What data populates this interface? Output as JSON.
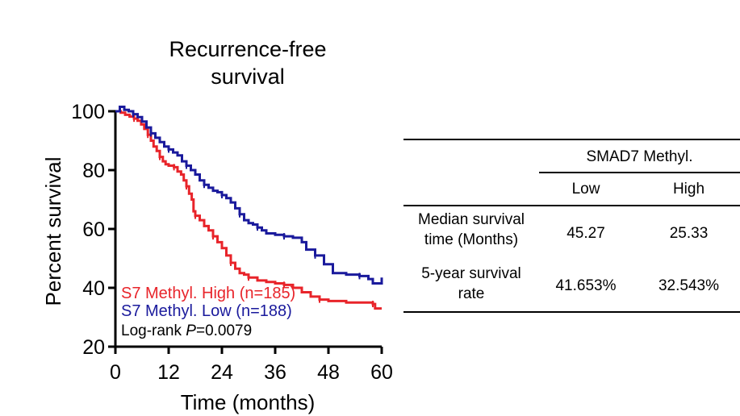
{
  "chart_data": {
    "type": "line",
    "subtype": "kaplan-meier",
    "title": "Recurrence-free\nsurvival",
    "title_lines": [
      "Recurrence-free",
      "survival"
    ],
    "xlabel": "Time (months)",
    "ylabel": "Percent survival",
    "xlim": [
      0,
      60
    ],
    "ylim": [
      20,
      100
    ],
    "xticks": [
      0,
      12,
      24,
      36,
      48,
      60
    ],
    "yticks": [
      20,
      40,
      60,
      80,
      100
    ],
    "series": [
      {
        "name": "S7 Methyl. High (n=185)",
        "label": "S7 Methyl. High (n=185)",
        "color": "#e8242a",
        "points": [
          [
            0,
            100
          ],
          [
            1.2,
            99.5
          ],
          [
            2.2,
            98.8
          ],
          [
            3.2,
            98.2
          ],
          [
            4.2,
            97.5
          ],
          [
            5,
            96.8
          ],
          [
            5.8,
            95.5
          ],
          [
            6.5,
            94
          ],
          [
            7.3,
            92
          ],
          [
            8,
            90
          ],
          [
            8.6,
            88
          ],
          [
            9.3,
            86.5
          ],
          [
            10,
            84.5
          ],
          [
            10.7,
            83
          ],
          [
            11.3,
            82
          ],
          [
            12,
            81.5
          ],
          [
            13.2,
            81
          ],
          [
            14,
            79.5
          ],
          [
            14.8,
            78.5
          ],
          [
            15.4,
            76.5
          ],
          [
            16,
            74.5
          ],
          [
            16.6,
            72
          ],
          [
            17.2,
            70
          ],
          [
            17.6,
            66
          ],
          [
            18,
            64.5
          ],
          [
            19,
            63
          ],
          [
            20,
            61
          ],
          [
            21,
            59.5
          ],
          [
            22,
            57.5
          ],
          [
            23,
            55.5
          ],
          [
            24,
            53.5
          ],
          [
            25,
            51
          ],
          [
            26,
            48.5
          ],
          [
            27,
            46.5
          ],
          [
            28,
            45
          ],
          [
            29,
            44.5
          ],
          [
            30,
            43.5
          ],
          [
            32,
            42.5
          ],
          [
            34,
            42
          ],
          [
            36,
            41.5
          ],
          [
            38,
            41
          ],
          [
            40,
            40
          ],
          [
            42,
            38.5
          ],
          [
            44,
            37
          ],
          [
            46,
            36
          ],
          [
            48,
            35.5
          ],
          [
            52,
            35
          ],
          [
            55,
            35
          ],
          [
            58,
            34.5
          ],
          [
            58.5,
            33
          ],
          [
            60,
            33
          ]
        ]
      },
      {
        "name": "S7 Methyl. Low (n=188)",
        "label": "S7 Methyl. Low (n=188)",
        "color": "#1a1a9c",
        "points": [
          [
            0,
            100
          ],
          [
            1,
            101.5
          ],
          [
            2,
            100.5
          ],
          [
            3,
            100
          ],
          [
            4,
            99
          ],
          [
            5,
            98
          ],
          [
            6,
            96.5
          ],
          [
            7,
            94.5
          ],
          [
            8,
            92.5
          ],
          [
            9,
            91
          ],
          [
            10,
            89.5
          ],
          [
            11,
            88
          ],
          [
            12,
            87
          ],
          [
            13,
            86
          ],
          [
            14,
            85
          ],
          [
            15,
            83
          ],
          [
            16,
            81.5
          ],
          [
            17,
            80
          ],
          [
            18,
            78.5
          ],
          [
            19,
            76.5
          ],
          [
            20,
            75
          ],
          [
            21,
            74
          ],
          [
            22,
            73
          ],
          [
            23,
            72.5
          ],
          [
            24,
            71.5
          ],
          [
            25,
            70.5
          ],
          [
            26,
            69
          ],
          [
            27,
            67
          ],
          [
            28,
            65
          ],
          [
            29,
            63
          ],
          [
            30,
            62
          ],
          [
            31,
            61.5
          ],
          [
            32,
            60.5
          ],
          [
            33,
            59.5
          ],
          [
            34,
            58.5
          ],
          [
            36,
            58
          ],
          [
            38,
            57.5
          ],
          [
            40,
            57
          ],
          [
            42,
            55.5
          ],
          [
            43,
            53
          ],
          [
            45,
            51
          ],
          [
            47,
            48
          ],
          [
            49,
            45
          ],
          [
            52,
            44.5
          ],
          [
            55,
            44
          ],
          [
            57,
            43
          ],
          [
            58,
            41.5
          ],
          [
            60,
            43.5
          ]
        ]
      }
    ],
    "annotations": [
      "S7 Methyl. High (n=185)",
      "S7 Methyl. Low (n=188)",
      "Log-rank P=0.0079"
    ],
    "stat_prefix": "Log-rank ",
    "stat_symbol": "P",
    "stat_value": "=0.0079",
    "legend": "bottom-left"
  },
  "table": {
    "group_header": "SMAD7 Methyl.",
    "columns": [
      "Low",
      "High"
    ],
    "rows": [
      {
        "label_lines": [
          "Median survival",
          "time (Months)"
        ],
        "values": [
          "45.27",
          "25.33"
        ]
      },
      {
        "label_lines": [
          "5-year survival",
          "rate"
        ],
        "values": [
          "41.653%",
          "32.543%"
        ]
      }
    ]
  }
}
